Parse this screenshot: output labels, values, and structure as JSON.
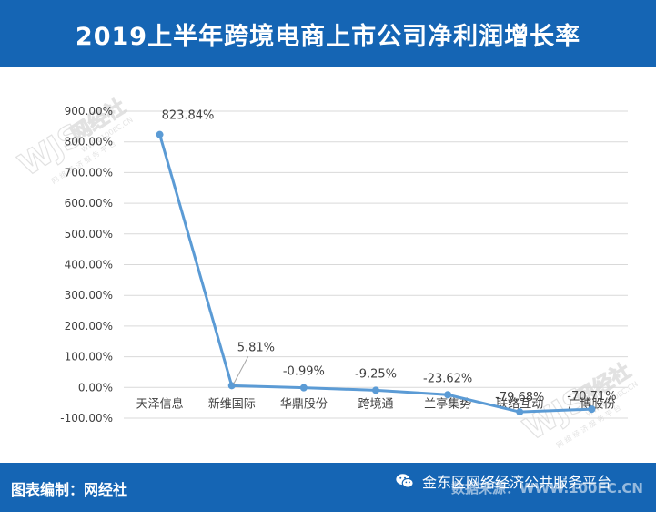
{
  "title": "2019上半年跨境电商上市公司净利润增长率",
  "footer": {
    "credit": "图表编制：网经社",
    "source": "数据来源：WWW.100EC.CN",
    "wechat_account": "金东区网络经济公共服务平台"
  },
  "watermark": {
    "mark": "WJS",
    "brand": "网经社",
    "url": "WWW.100EC.CN",
    "slogan": "网 络 经 济 服 务 平 台"
  },
  "colors": {
    "header_bg": "#1565b4",
    "line": "#5b9bd5",
    "grid": "#d9d9d9",
    "text": "#404040"
  },
  "icons": [
    "wechat-icon"
  ],
  "chart_data": {
    "type": "line",
    "title": "",
    "xlabel": "",
    "ylabel": "",
    "categories": [
      "天泽信息",
      "新维国际",
      "华鼎股份",
      "跨境通",
      "兰亭集势",
      "联络互动",
      "广博股份"
    ],
    "values": [
      823.84,
      5.81,
      -0.99,
      -9.25,
      -23.62,
      -79.68,
      -70.71
    ],
    "data_labels": [
      "823.84%",
      "5.81%",
      "-0.99%",
      "-9.25%",
      "-23.62%",
      "-79.68%",
      "-70.71%"
    ],
    "ylim": [
      -100,
      900
    ],
    "y_ticks": [
      -100,
      0,
      100,
      200,
      300,
      400,
      500,
      600,
      700,
      800,
      900
    ],
    "y_tick_labels": [
      "-100.00%",
      "0.00%",
      "100.00%",
      "200.00%",
      "300.00%",
      "400.00%",
      "500.00%",
      "600.00%",
      "700.00%",
      "800.00%",
      "900.00%"
    ],
    "grid": true,
    "legend": "none"
  }
}
